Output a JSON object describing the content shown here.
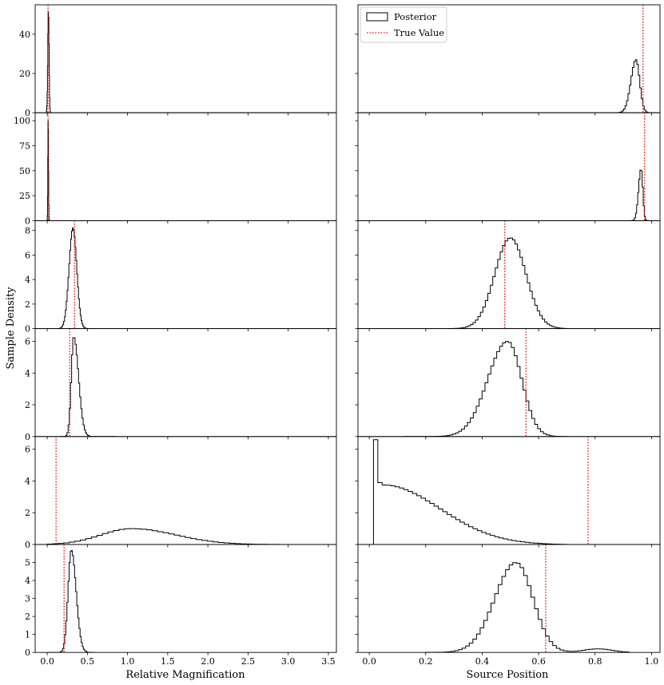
{
  "figure": {
    "ylabel": "Sample Density",
    "legend": {
      "posterior": "Posterior",
      "true_value": "True Value"
    },
    "colors": {
      "hist": "#000000",
      "true_value": "#ff0000"
    }
  },
  "chart_data": [
    {
      "type": "histogram",
      "column": "left",
      "xlabel": "Relative Magnification",
      "xlim": [
        -0.15,
        3.6
      ],
      "xticks": [
        0.0,
        0.5,
        1.0,
        1.5,
        2.0,
        2.5,
        3.0,
        3.5
      ],
      "xticklabels": [
        "0.0",
        "0.5",
        "1.0",
        "1.5",
        "2.0",
        "2.5",
        "3.0",
        "3.5"
      ],
      "panels": [
        {
          "ylim": [
            0,
            55
          ],
          "yticks": [
            0,
            20,
            40
          ],
          "true_value": 0.01,
          "dist": {
            "kind": "gauss",
            "mu": 0.015,
            "sigma": 0.008,
            "peak": 52,
            "lo": -0.01,
            "hi": 0.05,
            "bins": 14
          }
        },
        {
          "ylim": [
            0,
            108
          ],
          "yticks": [
            0,
            25,
            50,
            75,
            100
          ],
          "true_value": 0.01,
          "dist": {
            "kind": "gauss",
            "mu": 0.012,
            "sigma": 0.004,
            "peak": 103,
            "lo": -0.005,
            "hi": 0.03,
            "bins": 12
          }
        },
        {
          "ylim": [
            0,
            8.8
          ],
          "yticks": [
            0,
            2,
            4,
            6,
            8
          ],
          "true_value": 0.34,
          "dist": {
            "kind": "gauss",
            "mu": 0.32,
            "sigma": 0.048,
            "peak": 8.2,
            "lo": 0.15,
            "hi": 0.52,
            "bins": 34
          }
        },
        {
          "ylim": [
            0,
            6.8
          ],
          "yticks": [
            0,
            2,
            4,
            6
          ],
          "true_value": 0.28,
          "dist": {
            "kind": "skew",
            "mu": 0.33,
            "sl": 0.03,
            "sr": 0.06,
            "peak": 6.3,
            "lo": 0.16,
            "hi": 0.85,
            "bins": 48
          }
        },
        {
          "ylim": [
            0,
            6.8
          ],
          "yticks": [
            0,
            2,
            4,
            6
          ],
          "true_value": 0.11,
          "dist": {
            "kind": "skew",
            "mu": 1.05,
            "sl": 0.38,
            "sr": 0.55,
            "peak": 1.0,
            "lo": 0.0,
            "hi": 3.3,
            "bins": 48
          }
        },
        {
          "ylim": [
            0,
            6.0
          ],
          "yticks": [
            0,
            1,
            2,
            3,
            4,
            5
          ],
          "true_value": 0.21,
          "dist": {
            "kind": "skew",
            "mu": 0.3,
            "sl": 0.04,
            "sr": 0.06,
            "peak": 5.7,
            "lo": 0.0,
            "hi": 0.6,
            "bins": 44
          }
        }
      ]
    },
    {
      "type": "histogram",
      "column": "right",
      "xlabel": "Source Position",
      "xlim": [
        -0.04,
        1.03
      ],
      "xticks": [
        0.0,
        0.2,
        0.4,
        0.6,
        0.8,
        1.0
      ],
      "xticklabels": [
        "0.0",
        "0.2",
        "0.4",
        "0.6",
        "0.8",
        "1.0"
      ],
      "panels": [
        {
          "ylim": [
            0,
            55
          ],
          "yticks": [],
          "true_value": 0.97,
          "dist": {
            "kind": "skew",
            "mu": 0.945,
            "sl": 0.018,
            "sr": 0.013,
            "peak": 27,
            "lo": 0.88,
            "hi": 0.995,
            "bins": 22
          }
        },
        {
          "ylim": [
            0,
            108
          ],
          "yticks": [],
          "true_value": 0.975,
          "dist": {
            "kind": "skew",
            "mu": 0.963,
            "sl": 0.009,
            "sr": 0.006,
            "peak": 52,
            "lo": 0.92,
            "hi": 0.99,
            "bins": 18
          }
        },
        {
          "ylim": [
            0,
            8.8
          ],
          "yticks": [],
          "true_value": 0.48,
          "dist": {
            "kind": "gauss",
            "mu": 0.5,
            "sigma": 0.055,
            "peak": 7.4,
            "lo": 0.28,
            "hi": 0.7,
            "bins": 48
          }
        },
        {
          "ylim": [
            0,
            6.8
          ],
          "yticks": [],
          "true_value": 0.555,
          "dist": {
            "kind": "skew",
            "mu": 0.49,
            "sl": 0.07,
            "sr": 0.05,
            "peak": 6.0,
            "lo": 0.12,
            "hi": 0.7,
            "bins": 56
          }
        },
        {
          "ylim": [
            0,
            6.8
          ],
          "yticks": [],
          "true_value": 0.775,
          "dist": {
            "kind": "custom",
            "lo": 0.015,
            "hi": 0.72,
            "bins": 46
          }
        },
        {
          "ylim": [
            0,
            6.0
          ],
          "yticks": [],
          "true_value": 0.625,
          "dist": {
            "kind": "bimodal",
            "mu": 0.52,
            "sl": 0.075,
            "sr": 0.06,
            "peak": 5.0,
            "mu2": 0.81,
            "s2": 0.05,
            "peak2": 0.2,
            "lo": 0.2,
            "hi": 0.92,
            "bins": 56
          }
        }
      ]
    }
  ]
}
